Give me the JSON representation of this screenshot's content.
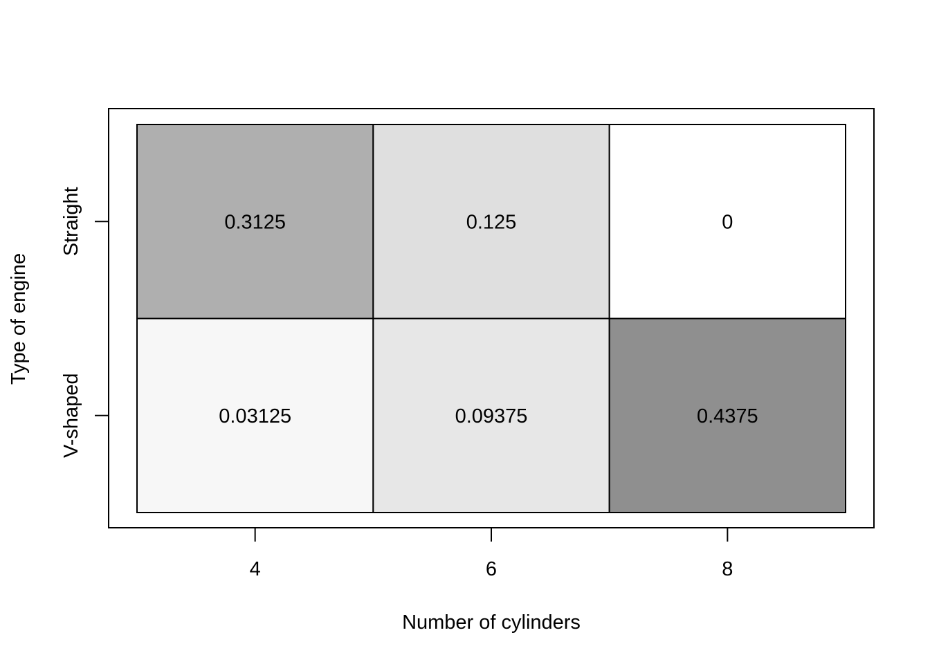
{
  "chart_data": {
    "type": "heatmap",
    "title": "",
    "xlabel": "Number of cylinders",
    "ylabel": "Type of engine",
    "x_categories": [
      "4",
      "6",
      "8"
    ],
    "y_categories": [
      "Straight",
      "V-shaped"
    ],
    "values": [
      [
        0.3125,
        0.125,
        0
      ],
      [
        0.03125,
        0.09375,
        0.4375
      ]
    ],
    "value_labels": [
      [
        "0.3125",
        "0.125",
        "0"
      ],
      [
        "0.03125",
        "0.09375",
        "0.4375"
      ]
    ],
    "colors": {
      "low": "#ffffff",
      "high": "#8f8f8f",
      "border": "#000000"
    },
    "grid": false,
    "legend": "none"
  }
}
